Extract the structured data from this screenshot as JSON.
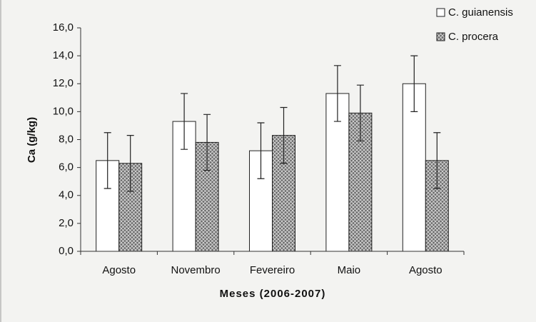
{
  "chart_data": {
    "type": "bar",
    "ylabel": "Ca (g/kg)",
    "xlabel": "Meses (2006-2007)",
    "categories": [
      "Agosto",
      "Novembro",
      "Fevereiro",
      "Maio",
      "Agosto"
    ],
    "series": [
      {
        "name": "C. guianensis",
        "color": "#ffffff",
        "values": [
          6.5,
          9.3,
          7.2,
          11.3,
          12.0
        ],
        "errors": [
          2.0,
          2.0,
          2.0,
          2.0,
          2.0
        ]
      },
      {
        "name": "C. procera",
        "color": "#6a6a6a",
        "values": [
          6.3,
          7.8,
          8.3,
          9.9,
          6.5
        ],
        "errors": [
          2.0,
          2.0,
          2.0,
          2.0,
          2.0
        ]
      }
    ],
    "ylim": [
      0,
      16
    ],
    "yticks": [
      {
        "value": 0,
        "label": "0,0"
      },
      {
        "value": 2,
        "label": "2,0"
      },
      {
        "value": 4,
        "label": "4,0"
      },
      {
        "value": 6,
        "label": "6,0"
      },
      {
        "value": 8,
        "label": "8,0"
      },
      {
        "value": 10,
        "label": "10,0"
      },
      {
        "value": 12,
        "label": "12,0"
      },
      {
        "value": 14,
        "label": "14,0"
      },
      {
        "value": 16,
        "label": "16,0"
      }
    ],
    "legend": "upper right"
  }
}
